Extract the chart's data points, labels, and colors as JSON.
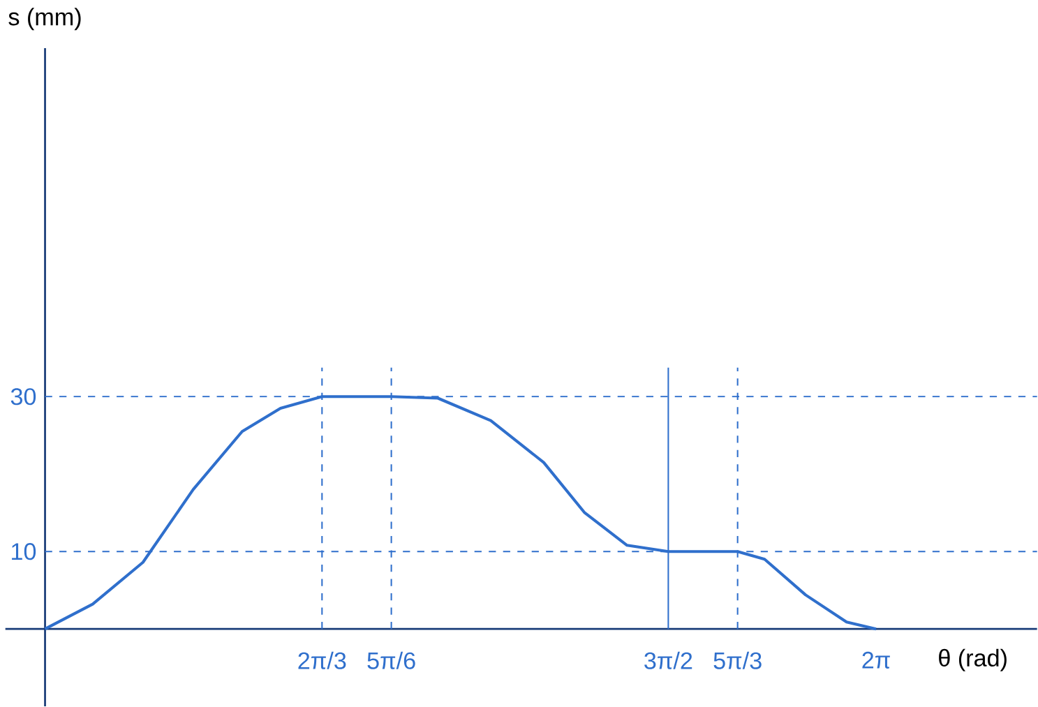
{
  "chart_data": {
    "type": "line",
    "xlabel": "θ (rad)",
    "ylabel": "s (mm)",
    "x": [
      0,
      0.36,
      0.74,
      1.12,
      1.49,
      1.78,
      2.094,
      2.618,
      2.97,
      3.37,
      3.77,
      4.08,
      4.4,
      4.712,
      5.236,
      5.44,
      5.75,
      6.06,
      6.283
    ],
    "values": [
      0,
      3.2,
      8.6,
      18,
      25.5,
      28.5,
      30,
      30,
      29.8,
      26.9,
      21.5,
      15,
      10.8,
      10,
      10,
      9,
      4.4,
      0.9,
      0
    ],
    "color": "#2f6fcc",
    "xlim": [
      -0.3,
      7.5
    ],
    "ylim": [
      -10,
      75
    ],
    "xticks": [
      {
        "value": 2.094,
        "label": "2π/3"
      },
      {
        "value": 2.618,
        "label": "5π/6"
      },
      {
        "value": 4.712,
        "label": "3π/2"
      },
      {
        "value": 5.236,
        "label": "5π/3"
      },
      {
        "value": 6.283,
        "label": "2π"
      }
    ],
    "yticks": [
      10,
      30
    ],
    "grid": false,
    "marker": "none",
    "line_style": "solid",
    "ref_lines": [
      {
        "axis": "y",
        "value": 30,
        "line_style": "dashed",
        "color": "#2f6fcc"
      },
      {
        "axis": "y",
        "value": 10,
        "line_style": "dashed",
        "color": "#2f6fcc"
      },
      {
        "axis": "x",
        "value": 2.094,
        "line_style": "dashed",
        "color": "#2f6fcc"
      },
      {
        "axis": "x",
        "value": 2.618,
        "line_style": "dashed",
        "color": "#2f6fcc"
      },
      {
        "axis": "x",
        "value": 4.712,
        "line_style": "solid",
        "color": "#2f6fcc"
      },
      {
        "axis": "x",
        "value": 5.236,
        "line_style": "dashed",
        "color": "#2f6fcc"
      }
    ]
  }
}
